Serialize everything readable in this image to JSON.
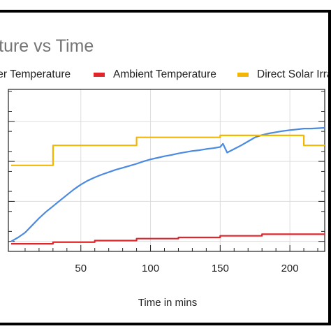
{
  "chart_data": {
    "type": "line",
    "title": "erature vs Time",
    "xlabel": "Time in mins",
    "ylabel": "",
    "xlim": [
      -2,
      225
    ],
    "ylim": [
      -0.25,
      3.8
    ],
    "xticks": [
      50,
      100,
      150,
      200
    ],
    "grid": true,
    "legend_position": "top",
    "series": [
      {
        "name": "ter Temperature",
        "color": "#4a8ae0",
        "x": [
          0,
          5,
          10,
          15,
          20,
          25,
          30,
          35,
          40,
          45,
          50,
          55,
          60,
          65,
          70,
          75,
          80,
          85,
          90,
          95,
          100,
          105,
          110,
          115,
          120,
          125,
          130,
          135,
          140,
          145,
          150,
          152,
          155,
          160,
          165,
          170,
          175,
          180,
          185,
          190,
          195,
          200,
          205,
          210,
          215,
          220,
          225
        ],
        "y": [
          0.0,
          0.1,
          0.22,
          0.4,
          0.58,
          0.74,
          0.88,
          1.02,
          1.16,
          1.3,
          1.42,
          1.52,
          1.6,
          1.67,
          1.73,
          1.79,
          1.84,
          1.89,
          1.94,
          2.0,
          2.05,
          2.09,
          2.13,
          2.16,
          2.2,
          2.23,
          2.26,
          2.28,
          2.31,
          2.33,
          2.36,
          2.44,
          2.22,
          2.31,
          2.4,
          2.5,
          2.6,
          2.66,
          2.7,
          2.73,
          2.76,
          2.78,
          2.8,
          2.82,
          2.82,
          2.83,
          2.84
        ]
      },
      {
        "name": "Ambient Temperature",
        "color": "#e0252b",
        "x": [
          0,
          30,
          30,
          60,
          60,
          90,
          90,
          120,
          120,
          150,
          150,
          180,
          180,
          225
        ],
        "y": [
          -0.06,
          -0.06,
          -0.02,
          -0.02,
          0.02,
          0.02,
          0.07,
          0.07,
          0.1,
          0.1,
          0.14,
          0.14,
          0.18,
          0.18
        ]
      },
      {
        "name": "Direct Solar Irra",
        "color": "#f2b705",
        "x": [
          0,
          30,
          30,
          90,
          90,
          150,
          150,
          210,
          210,
          225
        ],
        "y": [
          1.9,
          1.9,
          2.4,
          2.4,
          2.6,
          2.6,
          2.65,
          2.65,
          2.4,
          2.4
        ]
      }
    ]
  }
}
